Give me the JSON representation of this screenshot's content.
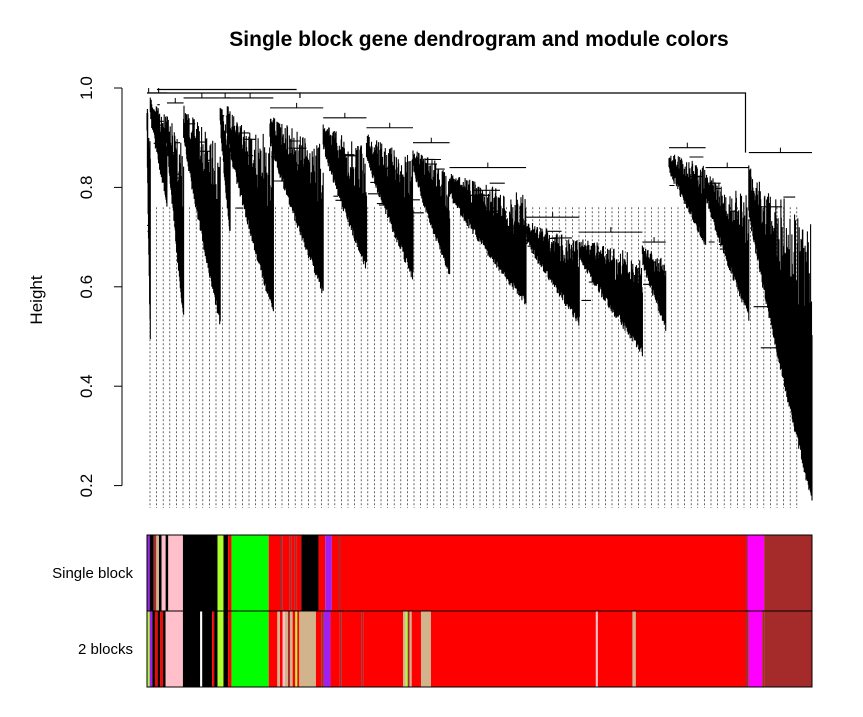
{
  "chart_data": {
    "type": "dendrogram",
    "title": "Single block gene dendrogram and module colors",
    "ylabel": "Height",
    "ylim": [
      0.12,
      1.0
    ],
    "yticks": [
      0.2,
      0.4,
      0.6,
      0.8,
      1.0
    ],
    "ytick_labels": [
      "0.2",
      "0.4",
      "0.6",
      "0.8",
      "1.0"
    ],
    "branches": [
      {
        "start": 0.0,
        "end": 0.005,
        "top": 0.99,
        "bottom": 0.5
      },
      {
        "start": 0.005,
        "end": 0.03,
        "top": 0.99,
        "bottom": 0.78
      },
      {
        "start": 0.03,
        "end": 0.055,
        "top": 0.97,
        "bottom": 0.55
      },
      {
        "start": 0.055,
        "end": 0.11,
        "top": 0.98,
        "bottom": 0.54
      },
      {
        "start": 0.11,
        "end": 0.125,
        "top": 0.98,
        "bottom": 0.72
      },
      {
        "start": 0.12,
        "end": 0.19,
        "top": 0.98,
        "bottom": 0.56
      },
      {
        "start": 0.185,
        "end": 0.265,
        "top": 0.96,
        "bottom": 0.6
      },
      {
        "start": 0.265,
        "end": 0.33,
        "top": 0.94,
        "bottom": 0.65
      },
      {
        "start": 0.33,
        "end": 0.4,
        "top": 0.92,
        "bottom": 0.63
      },
      {
        "start": 0.4,
        "end": 0.455,
        "top": 0.89,
        "bottom": 0.64
      },
      {
        "start": 0.455,
        "end": 0.57,
        "top": 0.84,
        "bottom": 0.58
      },
      {
        "start": 0.57,
        "end": 0.65,
        "top": 0.74,
        "bottom": 0.54
      },
      {
        "start": 0.65,
        "end": 0.745,
        "top": 0.71,
        "bottom": 0.48
      },
      {
        "start": 0.745,
        "end": 0.78,
        "top": 0.69,
        "bottom": 0.53
      },
      {
        "start": 0.785,
        "end": 0.84,
        "top": 0.88,
        "bottom": 0.7
      },
      {
        "start": 0.84,
        "end": 0.905,
        "top": 0.84,
        "bottom": 0.55
      },
      {
        "start": 0.905,
        "end": 1.0,
        "top": 0.87,
        "bottom": 0.18
      }
    ],
    "color_rows": [
      {
        "label": "Single block",
        "segments": [
          {
            "start": 0.0,
            "end": 0.004,
            "color": "#a020f0"
          },
          {
            "start": 0.004,
            "end": 0.01,
            "color": "#000000"
          },
          {
            "start": 0.01,
            "end": 0.014,
            "color": "#a52a2a"
          },
          {
            "start": 0.014,
            "end": 0.018,
            "color": "#d2b48c"
          },
          {
            "start": 0.018,
            "end": 0.022,
            "color": "#000000"
          },
          {
            "start": 0.022,
            "end": 0.028,
            "color": "#ffc0cb"
          },
          {
            "start": 0.028,
            "end": 0.032,
            "color": "#000000"
          },
          {
            "start": 0.032,
            "end": 0.054,
            "color": "#ffc0cb"
          },
          {
            "start": 0.054,
            "end": 0.106,
            "color": "#000000"
          },
          {
            "start": 0.106,
            "end": 0.115,
            "color": "#adff2f"
          },
          {
            "start": 0.115,
            "end": 0.122,
            "color": "#000000"
          },
          {
            "start": 0.122,
            "end": 0.127,
            "color": "#ff0000"
          },
          {
            "start": 0.127,
            "end": 0.183,
            "color": "#00ff00"
          },
          {
            "start": 0.183,
            "end": 0.2,
            "color": "#ff0000"
          },
          {
            "start": 0.2,
            "end": 0.204,
            "color": "#a52a2a"
          },
          {
            "start": 0.204,
            "end": 0.214,
            "color": "#ff0000"
          },
          {
            "start": 0.214,
            "end": 0.217,
            "color": "#a52a2a"
          },
          {
            "start": 0.217,
            "end": 0.222,
            "color": "#ff0000"
          },
          {
            "start": 0.222,
            "end": 0.225,
            "color": "#a52a2a"
          },
          {
            "start": 0.225,
            "end": 0.232,
            "color": "#ff0000"
          },
          {
            "start": 0.232,
            "end": 0.258,
            "color": "#000000"
          },
          {
            "start": 0.258,
            "end": 0.268,
            "color": "#ff0000"
          },
          {
            "start": 0.268,
            "end": 0.278,
            "color": "#a020f0"
          },
          {
            "start": 0.278,
            "end": 0.288,
            "color": "#ff0000"
          },
          {
            "start": 0.288,
            "end": 0.291,
            "color": "#a52a2a"
          },
          {
            "start": 0.291,
            "end": 0.9,
            "color": "#ff0000"
          },
          {
            "start": 0.9,
            "end": 0.903,
            "color": "#a52a2a"
          },
          {
            "start": 0.903,
            "end": 0.928,
            "color": "#ff00ff"
          },
          {
            "start": 0.928,
            "end": 1.0,
            "color": "#a52a2a"
          }
        ]
      },
      {
        "label": "2 blocks",
        "segments": [
          {
            "start": 0.0,
            "end": 0.004,
            "color": "#adff2f"
          },
          {
            "start": 0.004,
            "end": 0.008,
            "color": "#a020f0"
          },
          {
            "start": 0.008,
            "end": 0.012,
            "color": "#000000"
          },
          {
            "start": 0.012,
            "end": 0.016,
            "color": "#ff0000"
          },
          {
            "start": 0.016,
            "end": 0.02,
            "color": "#000000"
          },
          {
            "start": 0.02,
            "end": 0.024,
            "color": "#ff0000"
          },
          {
            "start": 0.024,
            "end": 0.028,
            "color": "#000000"
          },
          {
            "start": 0.028,
            "end": 0.054,
            "color": "#ffc0cb"
          },
          {
            "start": 0.054,
            "end": 0.08,
            "color": "#000000"
          },
          {
            "start": 0.08,
            "end": 0.083,
            "color": "#ffffff"
          },
          {
            "start": 0.083,
            "end": 0.098,
            "color": "#000000"
          },
          {
            "start": 0.098,
            "end": 0.101,
            "color": "#ff0000"
          },
          {
            "start": 0.101,
            "end": 0.106,
            "color": "#000000"
          },
          {
            "start": 0.106,
            "end": 0.115,
            "color": "#adff2f"
          },
          {
            "start": 0.115,
            "end": 0.122,
            "color": "#000000"
          },
          {
            "start": 0.122,
            "end": 0.127,
            "color": "#ff0000"
          },
          {
            "start": 0.127,
            "end": 0.183,
            "color": "#00ff00"
          },
          {
            "start": 0.183,
            "end": 0.196,
            "color": "#ff0000"
          },
          {
            "start": 0.196,
            "end": 0.2,
            "color": "#d2b48c"
          },
          {
            "start": 0.2,
            "end": 0.204,
            "color": "#ff0000"
          },
          {
            "start": 0.204,
            "end": 0.207,
            "color": "#ffc0cb"
          },
          {
            "start": 0.207,
            "end": 0.212,
            "color": "#d2b48c"
          },
          {
            "start": 0.212,
            "end": 0.215,
            "color": "#a52a2a"
          },
          {
            "start": 0.215,
            "end": 0.219,
            "color": "#d2b48c"
          },
          {
            "start": 0.219,
            "end": 0.223,
            "color": "#ff0000"
          },
          {
            "start": 0.223,
            "end": 0.226,
            "color": "#adff2f"
          },
          {
            "start": 0.226,
            "end": 0.229,
            "color": "#ff0000"
          },
          {
            "start": 0.229,
            "end": 0.254,
            "color": "#d2b48c"
          },
          {
            "start": 0.254,
            "end": 0.262,
            "color": "#ff0000"
          },
          {
            "start": 0.262,
            "end": 0.266,
            "color": "#a52a2a"
          },
          {
            "start": 0.266,
            "end": 0.276,
            "color": "#a020f0"
          },
          {
            "start": 0.276,
            "end": 0.29,
            "color": "#ff0000"
          },
          {
            "start": 0.29,
            "end": 0.293,
            "color": "#a52a2a"
          },
          {
            "start": 0.293,
            "end": 0.322,
            "color": "#ff0000"
          },
          {
            "start": 0.322,
            "end": 0.325,
            "color": "#a52a2a"
          },
          {
            "start": 0.325,
            "end": 0.385,
            "color": "#ff0000"
          },
          {
            "start": 0.385,
            "end": 0.389,
            "color": "#d2b48c"
          },
          {
            "start": 0.389,
            "end": 0.392,
            "color": "#adff2f"
          },
          {
            "start": 0.392,
            "end": 0.395,
            "color": "#a52a2a"
          },
          {
            "start": 0.395,
            "end": 0.398,
            "color": "#d2b48c"
          },
          {
            "start": 0.398,
            "end": 0.412,
            "color": "#ff0000"
          },
          {
            "start": 0.412,
            "end": 0.427,
            "color": "#d2b48c"
          },
          {
            "start": 0.427,
            "end": 0.675,
            "color": "#ff0000"
          },
          {
            "start": 0.675,
            "end": 0.678,
            "color": "#ffc0cb"
          },
          {
            "start": 0.678,
            "end": 0.73,
            "color": "#ff0000"
          },
          {
            "start": 0.73,
            "end": 0.735,
            "color": "#d2b48c"
          },
          {
            "start": 0.735,
            "end": 0.9,
            "color": "#ff0000"
          },
          {
            "start": 0.9,
            "end": 0.905,
            "color": "#a52a2a"
          },
          {
            "start": 0.905,
            "end": 0.925,
            "color": "#ff00ff"
          },
          {
            "start": 0.925,
            "end": 0.928,
            "color": "#a52a2a"
          },
          {
            "start": 0.928,
            "end": 1.0,
            "color": "#a52a2a"
          }
        ]
      }
    ]
  }
}
